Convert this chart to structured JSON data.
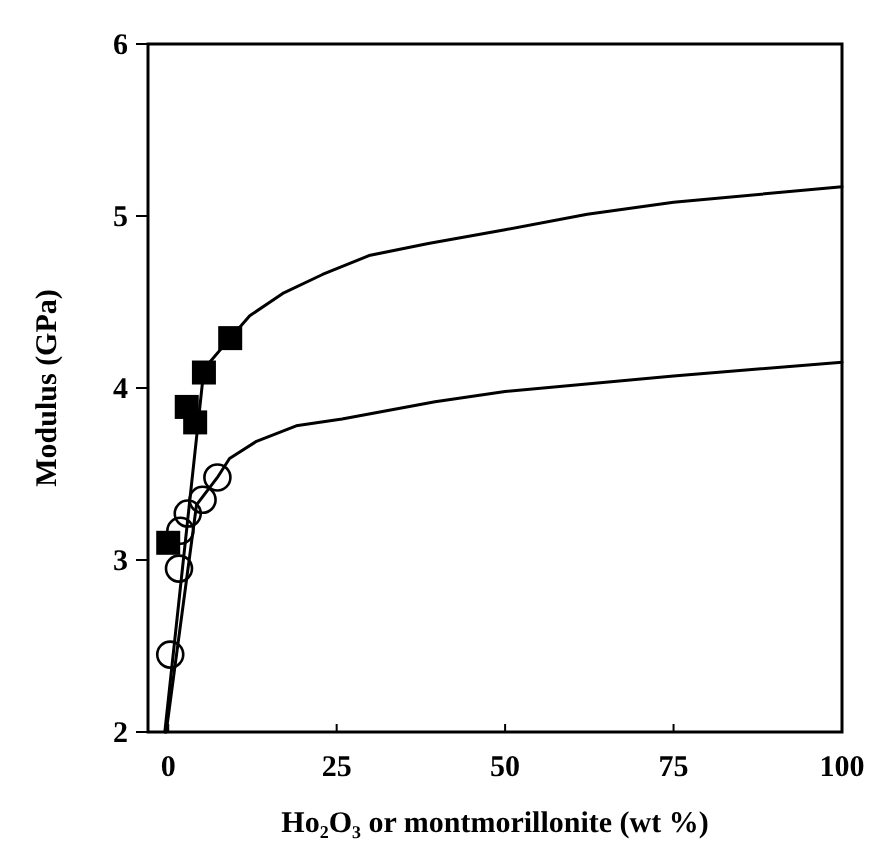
{
  "chart_data": {
    "type": "scatter",
    "xlabel": "Ho₂O₃ or montmorillonite (wt %)",
    "ylabel": "Modulus (GPa)",
    "xlim": [
      -3,
      100
    ],
    "xticks": [
      0,
      25,
      50,
      75,
      100
    ],
    "ylim": [
      2,
      6
    ],
    "yticks": [
      2,
      3,
      4,
      5,
      6
    ],
    "grid": false,
    "series": [
      {
        "type": "line",
        "color": "#000000",
        "marker": "none",
        "x": [
          -0.5,
          5.3,
          9.2,
          12.1,
          17,
          22.9,
          29.8,
          38.6,
          50,
          62.2,
          75,
          100
        ],
        "values": [
          2,
          4.11,
          4.29,
          4.42,
          4.55,
          4.66,
          4.77,
          4.84,
          4.92,
          5.01,
          5.08,
          5.17
        ]
      },
      {
        "type": "line",
        "color": "#000000",
        "marker": "none",
        "x": [
          -0.3,
          4.2,
          7.3,
          9.1,
          13.1,
          19,
          25.8,
          39.6,
          50,
          75,
          100
        ],
        "values": [
          2,
          3.32,
          3.48,
          3.59,
          3.69,
          3.78,
          3.82,
          3.92,
          3.98,
          4.07,
          4.15
        ]
      },
      {
        "color": "#000000",
        "marker": "square",
        "x": [
          0,
          2.75,
          4.0,
          5.3,
          9.2
        ],
        "values": [
          3.1,
          3.89,
          3.8,
          4.09,
          4.29
        ]
      },
      {
        "color": "#000000",
        "marker": "circle",
        "x": [
          0.3,
          1.6,
          1.8,
          2.9,
          5.1,
          7.3
        ],
        "values": [
          2.45,
          2.95,
          3.17,
          3.27,
          3.35,
          3.48
        ]
      }
    ]
  }
}
